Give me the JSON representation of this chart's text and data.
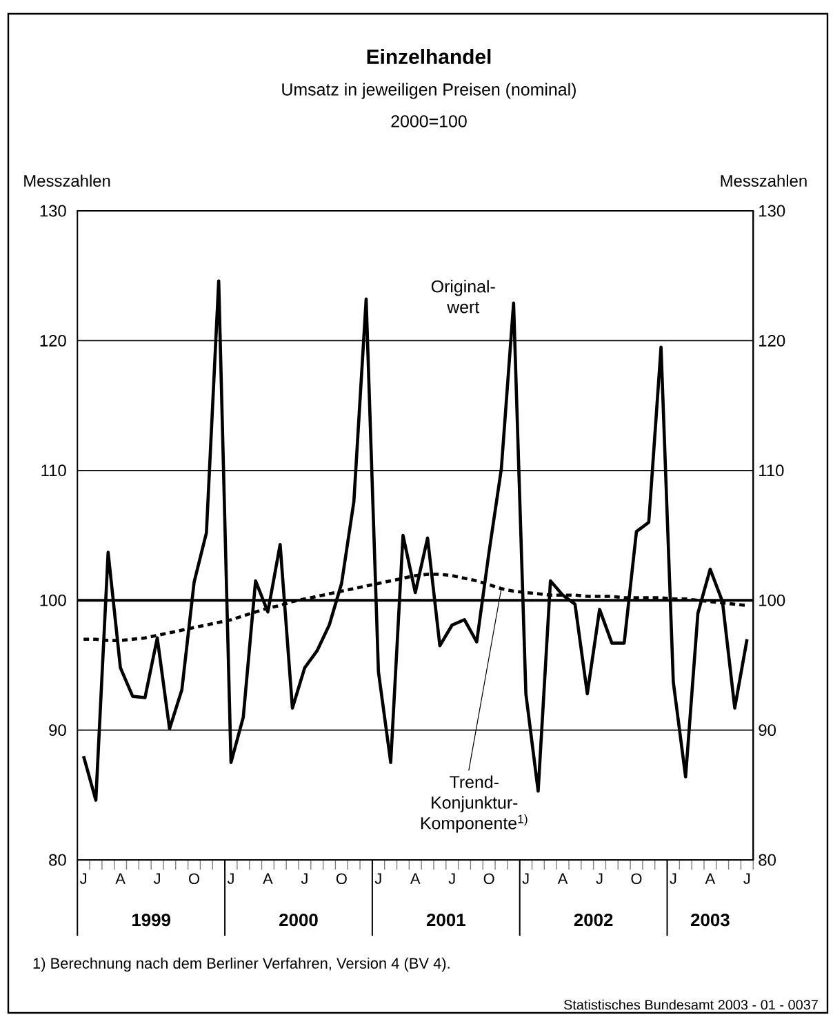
{
  "chart_data": {
    "type": "line",
    "title": "Einzelhandel",
    "subtitle": "Umsatz in jeweiligen Preisen (nominal)",
    "ylabel": "Messzahlen",
    "y2label": "Messzahlen",
    "categories": [
      "J",
      null,
      null,
      "A",
      null,
      null,
      "J",
      null,
      null,
      "O",
      null,
      null,
      "J",
      null,
      null,
      "A",
      null,
      null,
      "J",
      null,
      null,
      "O",
      null,
      null,
      "J",
      null,
      null,
      "A",
      null,
      null,
      "J",
      null,
      null,
      "O",
      null,
      null,
      "J",
      null,
      null,
      "A",
      null,
      null,
      "J",
      null,
      null,
      "O",
      null,
      null,
      "J",
      null,
      null,
      "A",
      null,
      null,
      "J"
    ],
    "series": [
      {
        "name": "Original-wert",
        "color": "#000000",
        "line_style": "solid",
        "values": [
          88.0,
          84.6,
          103.7,
          94.8,
          92.6,
          92.5,
          97.1,
          90.1,
          93.1,
          101.4,
          105.2,
          124.6,
          87.5,
          91.0,
          101.5,
          99.1,
          104.3,
          91.7,
          94.8,
          96.1,
          98.1,
          101.3,
          107.6,
          123.2,
          94.5,
          87.5,
          105.0,
          100.6,
          104.8,
          96.5,
          98.1,
          98.5,
          96.8,
          103.7,
          110.1,
          122.9,
          92.8,
          85.3,
          101.5,
          100.4,
          99.7,
          92.8,
          99.3,
          96.7,
          96.7,
          105.3,
          106.0,
          119.5,
          93.7,
          86.4,
          99.0,
          102.4,
          99.9,
          91.7,
          97.0
        ]
      },
      {
        "name": "Trend-Konjunktur-Komponente$^{1)}$",
        "color": "#000000",
        "line_style": "dashed",
        "values": [
          97.0,
          97.0,
          96.9,
          96.9,
          97.0,
          97.1,
          97.3,
          97.5,
          97.7,
          97.9,
          98.1,
          98.3,
          98.5,
          98.8,
          99.1,
          99.4,
          99.6,
          99.9,
          100.1,
          100.3,
          100.5,
          100.7,
          100.9,
          101.1,
          101.3,
          101.5,
          101.7,
          101.9,
          102.0,
          102.0,
          101.9,
          101.7,
          101.5,
          101.2,
          100.9,
          100.7,
          100.6,
          100.5,
          100.4,
          100.4,
          100.4,
          100.3,
          100.3,
          100.3,
          100.2,
          100.2,
          100.2,
          100.2,
          100.1,
          100.1,
          100.0,
          99.9,
          99.8,
          99.7,
          99.6
        ]
      }
    ],
    "ylim": [
      80,
      130
    ],
    "yticks": [
      80,
      90,
      100,
      110,
      120,
      130
    ],
    "y2lim": [
      80,
      130
    ],
    "y2ticks": [
      80,
      90,
      100,
      110,
      120,
      130
    ],
    "grid": "y",
    "legend": false,
    "marker": "none",
    "ref_lines": [
      {
        "axis": "y",
        "value": 100,
        "color": "#000000"
      }
    ],
    "annotations": [
      "2000=100",
      "1) Berechnung nach dem Berliner Verfahren, Version 4 (BV 4).",
      "Statistisches Bundesamt 2003 - 01 - 0037",
      "1999",
      "2000",
      "2001",
      "2002",
      "2003"
    ]
  }
}
